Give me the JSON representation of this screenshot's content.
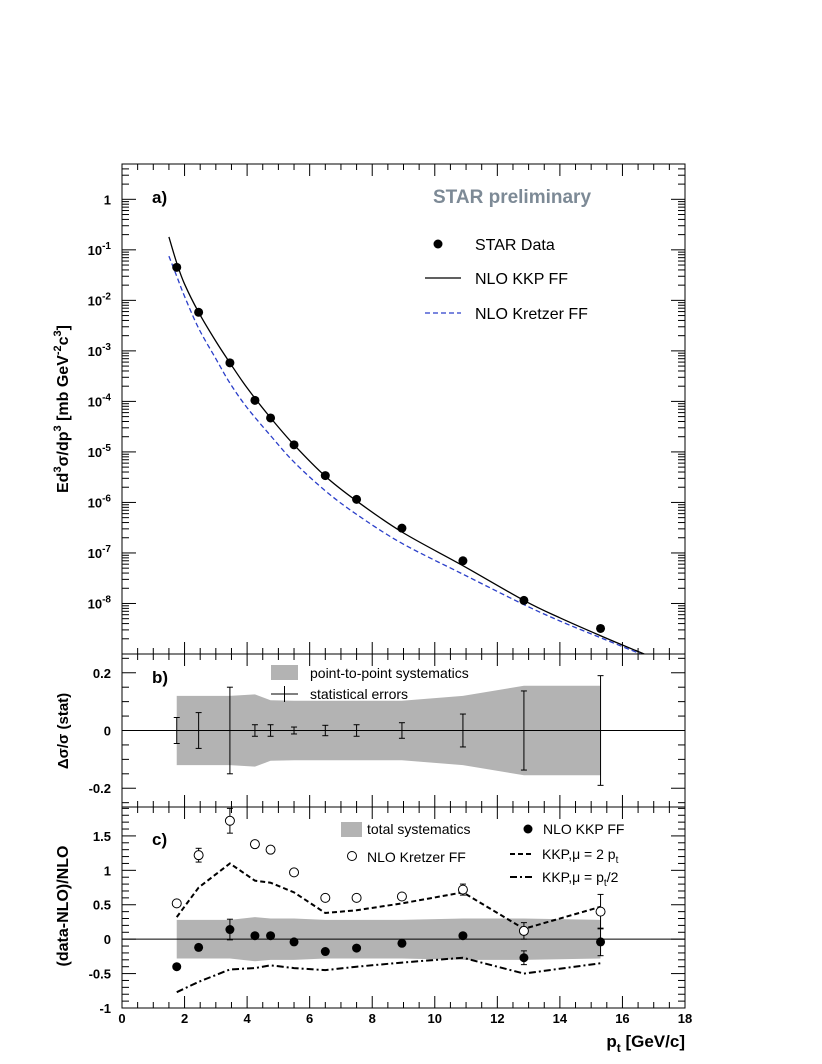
{
  "colors": {
    "watermark": "#7d8a96",
    "kretzer_curve": "#2b3fc9",
    "band": "#b3b3b3",
    "ink": "#000000"
  },
  "chart_data": [
    {
      "panel": "a",
      "type": "scatter",
      "panel_label": "a)",
      "watermark": "STAR preliminary",
      "yscale": "log",
      "ylim": [
        1e-09,
        5
      ],
      "xlim": [
        0,
        18
      ],
      "ylabel_parts": [
        "Ed",
        "3",
        "σ/dp",
        "3",
        " [mb GeV",
        "-2",
        "c",
        "3",
        "]"
      ],
      "yticks": [
        {
          "v": 1,
          "base": "1",
          "exp": ""
        },
        {
          "v": 0.1,
          "base": "10",
          "exp": "-1"
        },
        {
          "v": 0.01,
          "base": "10",
          "exp": "-2"
        },
        {
          "v": 0.001,
          "base": "10",
          "exp": "-3"
        },
        {
          "v": 0.0001,
          "base": "10",
          "exp": "-4"
        },
        {
          "v": 1e-05,
          "base": "10",
          "exp": "-5"
        },
        {
          "v": 1e-06,
          "base": "10",
          "exp": "-6"
        },
        {
          "v": 1e-07,
          "base": "10",
          "exp": "-7"
        },
        {
          "v": 1e-08,
          "base": "10",
          "exp": "-8"
        }
      ],
      "legend": [
        "STAR Data",
        "NLO KKP FF",
        "NLO Kretzer FF"
      ],
      "series": [
        {
          "name": "STAR Data",
          "kind": "points",
          "x": [
            1.75,
            2.45,
            3.45,
            4.25,
            4.75,
            5.5,
            6.5,
            7.5,
            8.95,
            10.9,
            12.85,
            15.3
          ],
          "y": [
            0.045,
            0.0058,
            0.00058,
            0.000105,
            4.7e-05,
            1.38e-05,
            3.4e-06,
            1.15e-06,
            3.1e-07,
            7e-08,
            1.15e-08,
            3.2e-09
          ]
        },
        {
          "name": "NLO KKP FF",
          "kind": "line",
          "x": [
            1.5,
            1.75,
            2.0,
            2.45,
            3.0,
            3.45,
            4.0,
            4.75,
            5.5,
            6.5,
            7.5,
            8.95,
            10.9,
            12.85,
            14.0,
            15.3,
            16.5,
            17.2
          ],
          "y": [
            0.18,
            0.055,
            0.021,
            0.0058,
            0.00155,
            0.00058,
            0.000185,
            4.75e-05,
            1.38e-05,
            3.3e-06,
            1.07e-06,
            2.6e-07,
            5.6e-08,
            1.15e-08,
            5.2e-09,
            2.3e-09,
            1.12e-09,
            7.5e-10
          ]
        },
        {
          "name": "NLO Kretzer FF",
          "kind": "dashed",
          "x": [
            1.5,
            1.75,
            2.0,
            2.45,
            3.0,
            3.45,
            4.0,
            4.75,
            5.5,
            6.5,
            7.5,
            8.95,
            10.9,
            12.85,
            14.0,
            15.3,
            16.5,
            17.0
          ],
          "y": [
            0.075,
            0.03,
            0.012,
            0.0028,
            0.0007,
            0.00023,
            7.5e-05,
            2.1e-05,
            6.3e-06,
            1.7e-06,
            5.8e-07,
            1.55e-07,
            3.8e-08,
            9.5e-09,
            4.5e-09,
            2.1e-09,
            1.05e-09,
            8e-10
          ]
        }
      ]
    },
    {
      "panel": "b",
      "type": "area",
      "panel_label": "b)",
      "ylabel": "Δσ/σ (stat)",
      "ylim": [
        -0.265,
        0.265
      ],
      "xlim": [
        0,
        18
      ],
      "yticks": [
        {
          "v": 0.2,
          "label": "0.2"
        },
        {
          "v": 0,
          "label": "0"
        },
        {
          "v": -0.2,
          "label": "-0.2"
        }
      ],
      "legend": [
        "point-to-point systematics",
        "statistical errors"
      ],
      "band": {
        "x": [
          1.75,
          3.45,
          4.25,
          4.75,
          5.5,
          6.5,
          7.5,
          8.95,
          10.9,
          12.85,
          15.3
        ],
        "half_width": [
          0.12,
          0.12,
          0.125,
          0.105,
          0.103,
          0.103,
          0.103,
          0.103,
          0.12,
          0.155,
          0.155
        ]
      },
      "stat_errors": {
        "x": [
          1.75,
          2.45,
          3.45,
          4.25,
          4.75,
          5.5,
          6.5,
          7.5,
          8.95,
          10.9,
          12.85,
          15.3
        ],
        "err": [
          0.045,
          0.062,
          0.15,
          0.02,
          0.02,
          0.012,
          0.018,
          0.02,
          0.027,
          0.057,
          0.137,
          0.19
        ]
      }
    },
    {
      "panel": "c",
      "type": "scatter",
      "panel_label": "c)",
      "ylabel": "(data-NLO)/NLO",
      "xlabel_base": "p",
      "xlabel_sub": "t",
      "xlabel_rest": " [GeV/c]",
      "ylim": [
        -1.0,
        1.92
      ],
      "xlim": [
        0,
        18
      ],
      "xticks": [
        "0",
        "2",
        "4",
        "6",
        "8",
        "10",
        "12",
        "14",
        "16",
        "18"
      ],
      "yticks": [
        {
          "v": 1.5,
          "label": "1.5"
        },
        {
          "v": 1,
          "label": "1"
        },
        {
          "v": 0.5,
          "label": "0.5"
        },
        {
          "v": 0,
          "label": "0"
        },
        {
          "v": -0.5,
          "label": "-0.5"
        },
        {
          "v": -1,
          "label": "-1"
        }
      ],
      "legend": {
        "total_systematics": "total systematics",
        "kretzer": "NLO Kretzer FF",
        "kkp": "NLO KKP FF",
        "mu2_pre": "KKP,μ = 2 p",
        "mu2_sub": "t",
        "muhalf_pre": "KKP,μ = p",
        "muhalf_sub": "t",
        "muhalf_post": "/2"
      },
      "band": {
        "x": [
          1.75,
          3.45,
          4.25,
          4.75,
          5.5,
          6.5,
          7.5,
          8.95,
          10.9,
          12.85,
          15.3
        ],
        "half_width": [
          0.28,
          0.28,
          0.32,
          0.3,
          0.3,
          0.28,
          0.28,
          0.28,
          0.3,
          0.3,
          0.28
        ]
      },
      "series": [
        {
          "name": "NLO Kretzer FF",
          "kind": "open",
          "x": [
            1.75,
            2.45,
            3.45,
            4.25,
            4.75,
            5.5,
            6.5,
            7.5,
            8.95,
            10.9,
            12.85,
            15.3
          ],
          "y": [
            0.52,
            1.22,
            1.72,
            1.38,
            1.3,
            0.97,
            0.6,
            0.6,
            0.62,
            0.72,
            0.12,
            0.4
          ],
          "err": [
            0.05,
            0.1,
            0.18,
            0.02,
            0.02,
            0.02,
            0.03,
            0.03,
            0.05,
            0.08,
            0.12,
            0.25
          ]
        },
        {
          "name": "NLO KKP FF",
          "kind": "filled",
          "x": [
            1.75,
            2.45,
            3.45,
            4.25,
            4.75,
            5.5,
            6.5,
            7.5,
            8.95,
            10.9,
            12.85,
            15.3
          ],
          "y": [
            -0.4,
            -0.12,
            0.14,
            0.05,
            0.05,
            -0.04,
            -0.18,
            -0.13,
            -0.06,
            0.05,
            -0.27,
            -0.04
          ],
          "err": [
            0.04,
            0.05,
            0.15,
            0.02,
            0.02,
            0.02,
            0.02,
            0.02,
            0.03,
            0.05,
            0.1,
            0.2
          ]
        },
        {
          "name": "KKP,μ = 2 p_t",
          "kind": "dashed",
          "x": [
            1.75,
            2.45,
            3.45,
            4.25,
            4.75,
            5.5,
            6.5,
            7.5,
            8.95,
            10.9,
            12.85,
            15.3
          ],
          "y": [
            0.32,
            0.75,
            1.1,
            0.85,
            0.82,
            0.68,
            0.38,
            0.42,
            0.52,
            0.68,
            0.15,
            0.47
          ]
        },
        {
          "name": "KKP,μ = p_t/2",
          "kind": "dashdot",
          "x": [
            1.75,
            2.45,
            3.45,
            4.25,
            4.75,
            5.5,
            6.5,
            7.5,
            8.95,
            10.9,
            12.85,
            15.3
          ],
          "y": [
            -0.77,
            -0.62,
            -0.44,
            -0.42,
            -0.38,
            -0.42,
            -0.45,
            -0.4,
            -0.34,
            -0.27,
            -0.5,
            -0.35
          ]
        }
      ]
    }
  ]
}
